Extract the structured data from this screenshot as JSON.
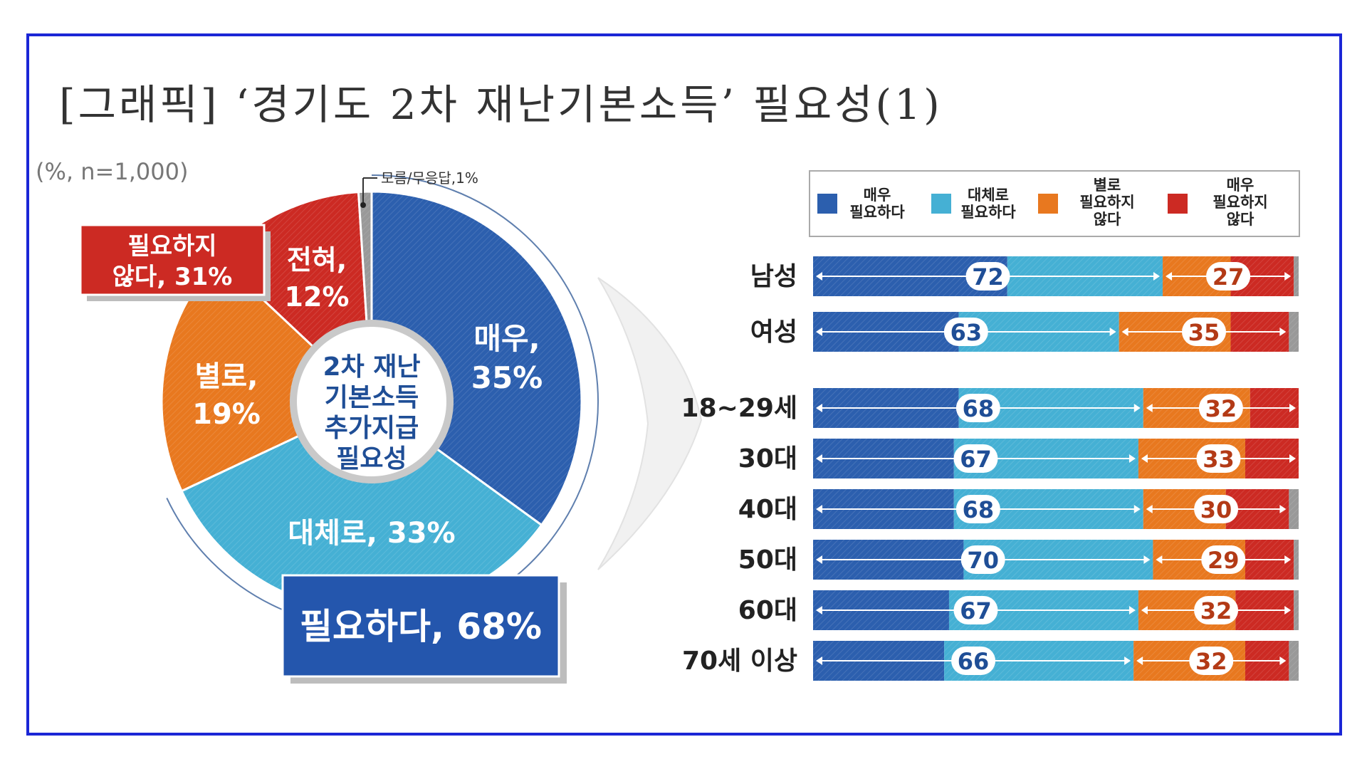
{
  "colors": {
    "very_necessary": "#2c5fae",
    "somewhat_necessary": "#45b0d4",
    "not_very_necessary": "#e8781f",
    "not_at_all": "#cc2a23",
    "dont_know": "#999999",
    "frame": "#1b26d6"
  },
  "title": "[그래픽] ‘경기도 2차 재난기본소득’ 필요성(1)",
  "unit_note": "(%, n=1,000)",
  "chart_data": [
    {
      "type": "pie",
      "center_label": [
        "2차 재난",
        "기본소득",
        "추가지급",
        "필요성"
      ],
      "slices": [
        {
          "name": "매우,",
          "value": 35
        },
        {
          "name": "대체로,",
          "value": 33
        },
        {
          "name": "별로,",
          "value": 19
        },
        {
          "name": "전혀,",
          "value": 12
        },
        {
          "name": "모름/무응답,",
          "value": 1
        }
      ],
      "slice_labels": {
        "very": [
          "매우,",
          "35%"
        ],
        "somewhat": "대체로, 33%",
        "notvery": [
          "별로,",
          "19%"
        ],
        "notatall": [
          "전혀,",
          "12%"
        ],
        "dk": "모름/무응답,1%"
      },
      "callouts": {
        "necessary": "필요하다, 68%",
        "not_necessary": [
          "필요하지",
          "않다, 31%"
        ]
      }
    },
    {
      "type": "bar",
      "stacked": true,
      "orientation": "horizontal",
      "legend": [
        {
          "key": "very",
          "lines": [
            "매우",
            "필요하다"
          ]
        },
        {
          "key": "somewhat",
          "lines": [
            "대체로",
            "필요하다"
          ]
        },
        {
          "key": "notvery",
          "lines": [
            "별로",
            "필요하지",
            "않다"
          ]
        },
        {
          "key": "notatall",
          "lines": [
            "매우",
            "필요하지",
            "않다"
          ]
        }
      ],
      "categories": [
        "남성",
        "여성",
        "18~29세",
        "30대",
        "40대",
        "50대",
        "60대",
        "70세 이상"
      ],
      "series": [
        {
          "name": "매우 필요하다",
          "values": [
            40,
            30,
            30,
            29,
            29,
            31,
            28,
            27
          ]
        },
        {
          "name": "대체로 필요하다",
          "values": [
            32,
            33,
            38,
            38,
            39,
            39,
            39,
            39
          ]
        },
        {
          "name": "별로 필요하지 않다",
          "values": [
            14,
            23,
            22,
            22,
            17,
            19,
            20,
            23
          ]
        },
        {
          "name": "매우 필요하지 않다",
          "values": [
            13,
            12,
            10,
            11,
            13,
            10,
            12,
            9
          ]
        },
        {
          "name": "모름/무응답",
          "values": [
            1,
            2,
            0,
            0,
            2,
            1,
            1,
            2
          ]
        }
      ],
      "need_totals": [
        72,
        63,
        68,
        67,
        68,
        70,
        67,
        66
      ],
      "not_need_totals": [
        27,
        35,
        32,
        33,
        30,
        29,
        32,
        32
      ],
      "xlim": [
        0,
        100
      ]
    }
  ]
}
